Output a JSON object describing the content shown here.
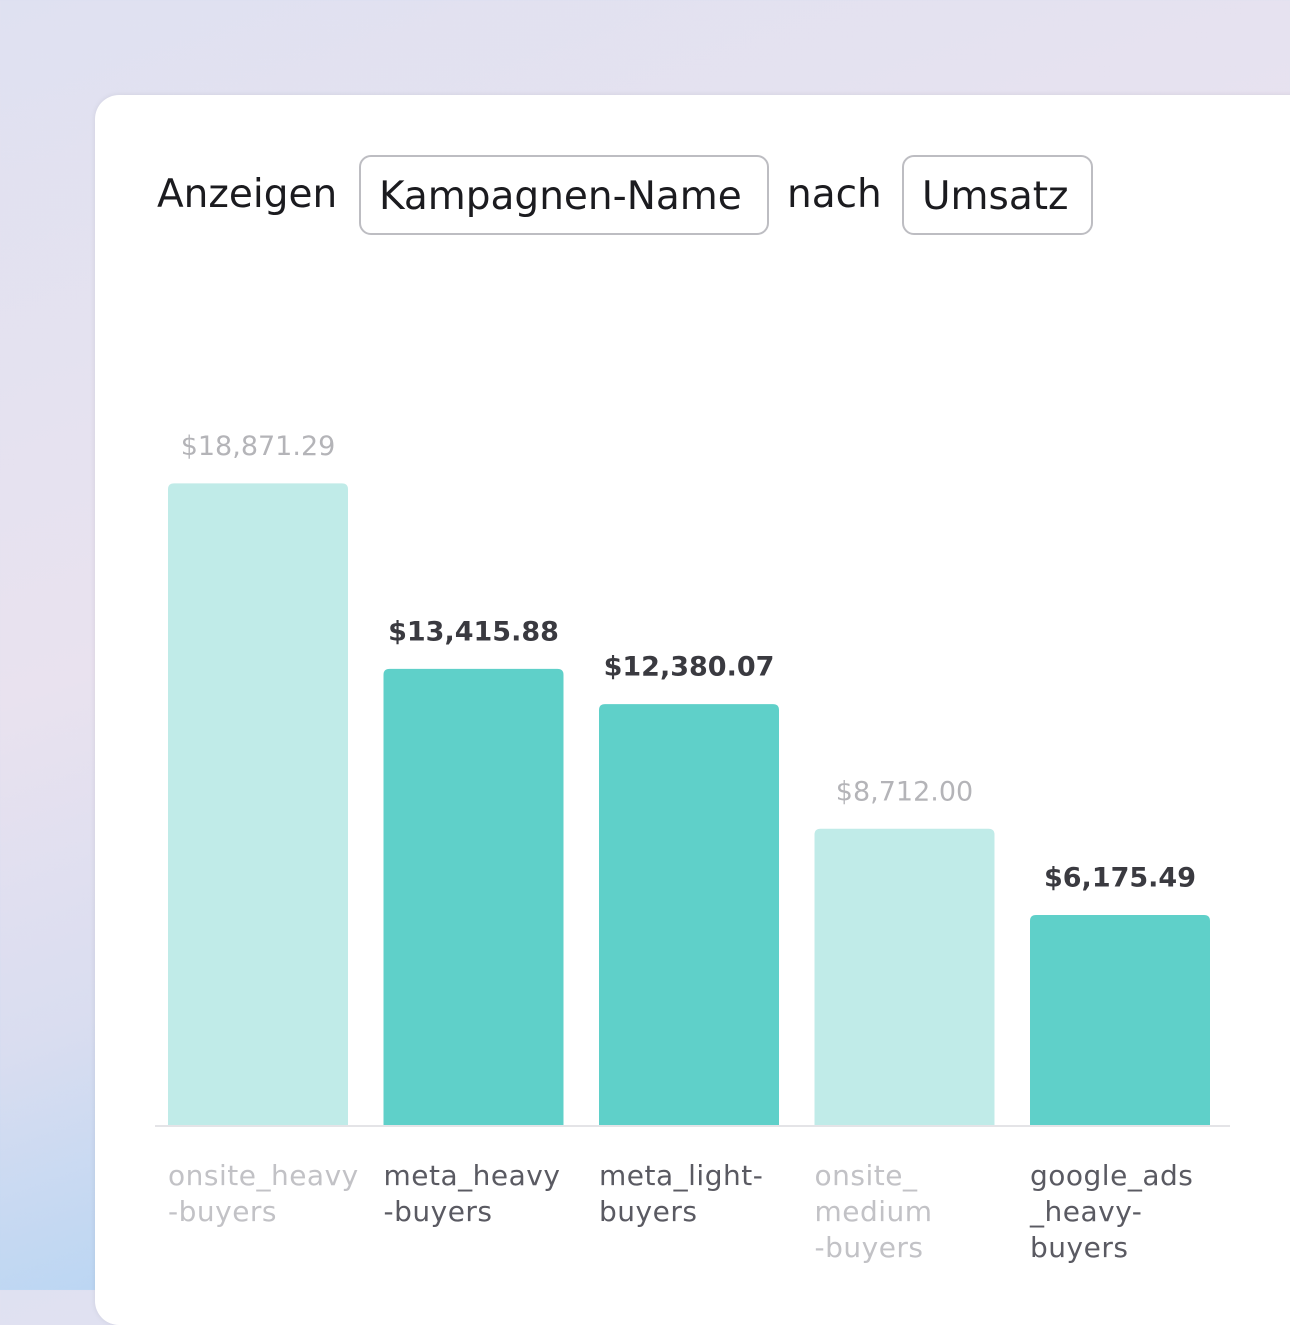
{
  "controls": {
    "prefix": "Anzeigen",
    "dimension": "Kampagnen-Name",
    "joiner": "nach",
    "metric": "Umsatz"
  },
  "chart_data": {
    "type": "bar",
    "categories": [
      "onsite_heavy\n-buyers",
      "meta_heavy\n-buyers",
      "meta_light-\nbuyers",
      "onsite_\nmedium\n-buyers",
      "google_ads\n_heavy-\nbuyers"
    ],
    "values": [
      18871.29,
      13415.88,
      12380.07,
      8712.0,
      6175.49
    ],
    "value_labels": [
      "$18,871.29",
      "$13,415.88",
      "$12,380.07",
      "$8,712.00",
      "$6,175.49"
    ],
    "highlighted": [
      false,
      true,
      true,
      false,
      true
    ],
    "color": "#5fd0c9",
    "faded_color": "#c0ebe8",
    "ylim": [
      0,
      20000
    ]
  }
}
